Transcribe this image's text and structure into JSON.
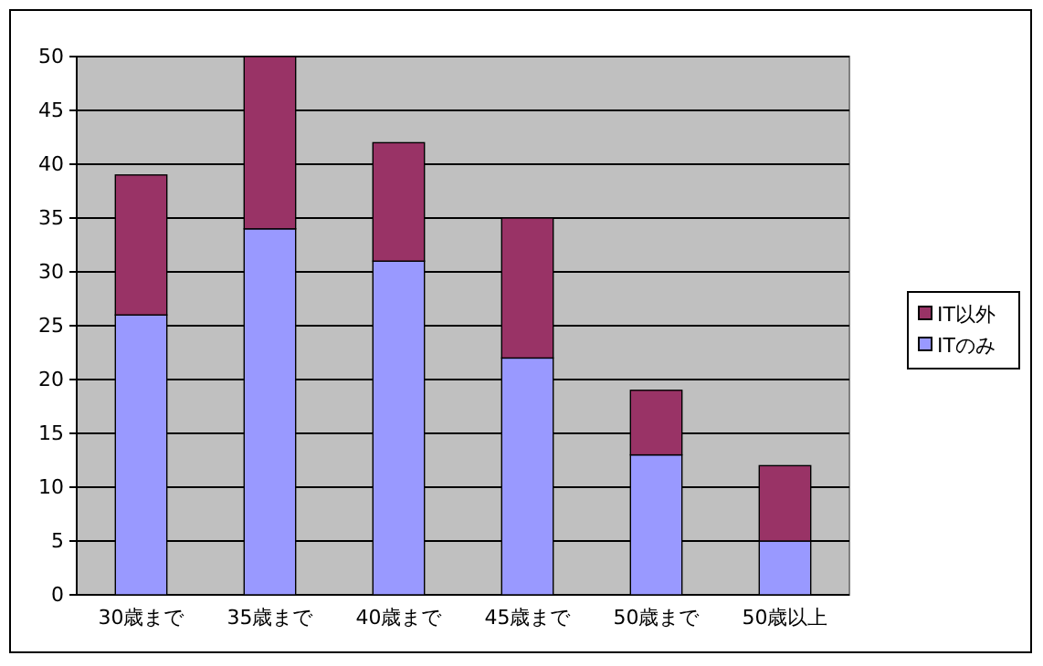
{
  "chart_data": {
    "type": "bar",
    "stacked": true,
    "categories": [
      "30歳まで",
      "35歳まで",
      "40歳まで",
      "45歳まで",
      "50歳まで",
      "50歳以上"
    ],
    "series": [
      {
        "name": "ITのみ",
        "color": "#9999ff",
        "values": [
          26,
          34,
          31,
          22,
          13,
          5
        ]
      },
      {
        "name": "IT以外",
        "color": "#993366",
        "values": [
          13,
          16,
          11,
          13,
          6,
          7
        ]
      }
    ],
    "ylim": [
      0,
      50
    ],
    "yticks": [
      0,
      5,
      10,
      15,
      20,
      25,
      30,
      35,
      40,
      45,
      50
    ],
    "grid": "y",
    "legend": "right"
  }
}
